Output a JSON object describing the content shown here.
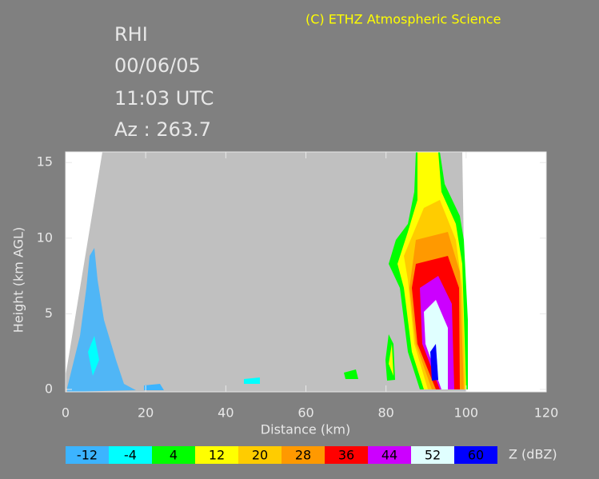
{
  "chart_data": {
    "type": "rhi",
    "title_lines": [
      "RHI",
      "00/06/05",
      "11:03 UTC",
      "Az : 263.7"
    ],
    "credit": "(C) ETHZ Atmospheric Science",
    "x_label": "Distance    (km)",
    "y_label": "Height  (km AGL)",
    "xlim": [
      0,
      120
    ],
    "xticks": [
      0,
      20,
      40,
      60,
      80,
      100,
      120
    ],
    "ylim": [
      0,
      15.7
    ],
    "yticks": [
      0,
      5,
      10,
      15
    ],
    "colorbar": {
      "label": "Z (dBZ)",
      "levels": [
        -12,
        -4,
        4,
        12,
        20,
        28,
        36,
        44,
        52,
        60
      ],
      "colors": [
        "#3cb4ff",
        "#00ffff",
        "#00ff00",
        "#ffff00",
        "#ffcc00",
        "#ff9900",
        "#ff0000",
        "#cc00ff",
        "#e0ffff",
        "#0000ff"
      ]
    }
  }
}
